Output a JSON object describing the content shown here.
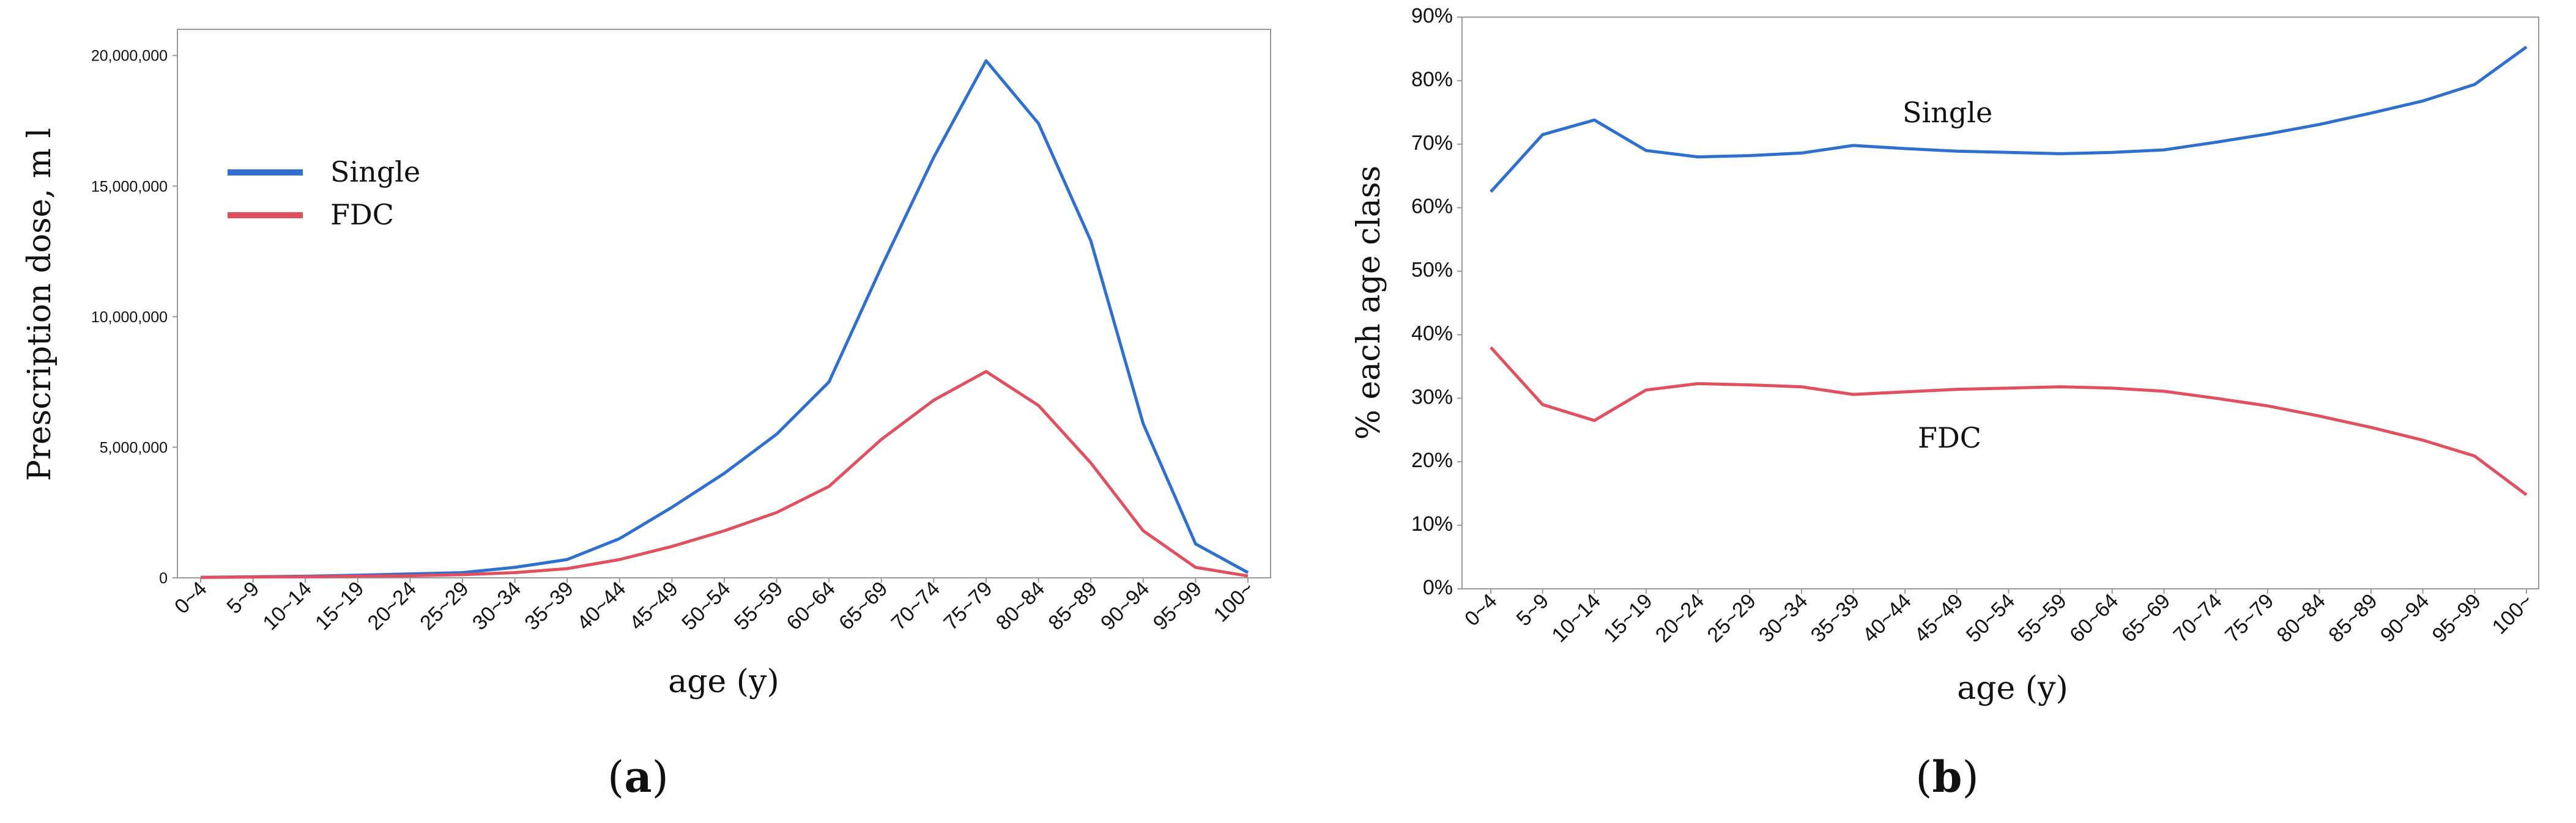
{
  "chart_data": [
    {
      "type": "line",
      "panel_label": {
        "open": "(",
        "letter": "a",
        "close": ")"
      },
      "title": "",
      "xlabel": "age (y)",
      "ylabel": "Prescription dose, m l",
      "ylim": [
        0,
        21000000
      ],
      "yticks": [
        {
          "value": 0,
          "label": "0"
        },
        {
          "value": 5000000,
          "label": "5,000,000"
        },
        {
          "value": 10000000,
          "label": "10,000,000"
        },
        {
          "value": 15000000,
          "label": "15,000,000"
        },
        {
          "value": 20000000,
          "label": "20,000,000"
        }
      ],
      "categories": [
        "0~4",
        "5~9",
        "10~14",
        "15~19",
        "20~24",
        "25~29",
        "30~34",
        "35~39",
        "40~44",
        "45~49",
        "50~54",
        "55~59",
        "60~64",
        "65~69",
        "70~74",
        "75~79",
        "80~84",
        "85~89",
        "90~94",
        "95~99",
        "100~"
      ],
      "legend": {
        "position": "top-left"
      },
      "series": [
        {
          "name": "Single",
          "color": "#2f6fd0",
          "values": [
            20000,
            40000,
            60000,
            100000,
            150000,
            200000,
            400000,
            700000,
            1500000,
            2700000,
            4000000,
            5500000,
            7500000,
            11900000,
            16100000,
            19800000,
            17400000,
            12900000,
            5900000,
            1300000,
            200000
          ]
        },
        {
          "name": "FDC",
          "color": "#e0505e",
          "values": [
            15000,
            30000,
            40000,
            60000,
            80000,
            120000,
            200000,
            350000,
            700000,
            1200000,
            1800000,
            2500000,
            3500000,
            5300000,
            6800000,
            7900000,
            6600000,
            4400000,
            1800000,
            400000,
            70000
          ]
        }
      ]
    },
    {
      "type": "line",
      "panel_label": {
        "open": "(",
        "letter": "b",
        "close": ")"
      },
      "title": "",
      "xlabel": "age (y)",
      "ylabel": "% each age class",
      "ylim": [
        0,
        90
      ],
      "yticks": [
        {
          "value": 0,
          "label": "0%"
        },
        {
          "value": 10,
          "label": "10%"
        },
        {
          "value": 20,
          "label": "20%"
        },
        {
          "value": 30,
          "label": "30%"
        },
        {
          "value": 40,
          "label": "40%"
        },
        {
          "value": 50,
          "label": "50%"
        },
        {
          "value": 60,
          "label": "60%"
        },
        {
          "value": 70,
          "label": "70%"
        },
        {
          "value": 80,
          "label": "80%"
        },
        {
          "value": 90,
          "label": "90%"
        }
      ],
      "categories": [
        "0~4",
        "5~9",
        "10~14",
        "15~19",
        "20~24",
        "25~29",
        "30~34",
        "35~39",
        "40~44",
        "45~49",
        "50~54",
        "55~59",
        "60~64",
        "65~69",
        "70~74",
        "75~79",
        "80~84",
        "85~89",
        "90~94",
        "95~99",
        "100~"
      ],
      "series": [
        {
          "name": "Single",
          "color": "#2f6fd0",
          "values": [
            62.5,
            71.5,
            73.8,
            69.0,
            68.0,
            68.2,
            68.6,
            69.8,
            69.3,
            68.9,
            68.7,
            68.5,
            68.7,
            69.1,
            70.3,
            71.6,
            73.1,
            74.9,
            76.8,
            79.4,
            85.3
          ]
        },
        {
          "name": "FDC",
          "color": "#e0505e",
          "values": [
            38.0,
            29.0,
            26.5,
            31.3,
            32.3,
            32.1,
            31.8,
            30.6,
            31.0,
            31.4,
            31.6,
            31.8,
            31.6,
            31.1,
            30.0,
            28.8,
            27.2,
            25.4,
            23.4,
            20.9,
            14.8
          ]
        }
      ]
    }
  ]
}
